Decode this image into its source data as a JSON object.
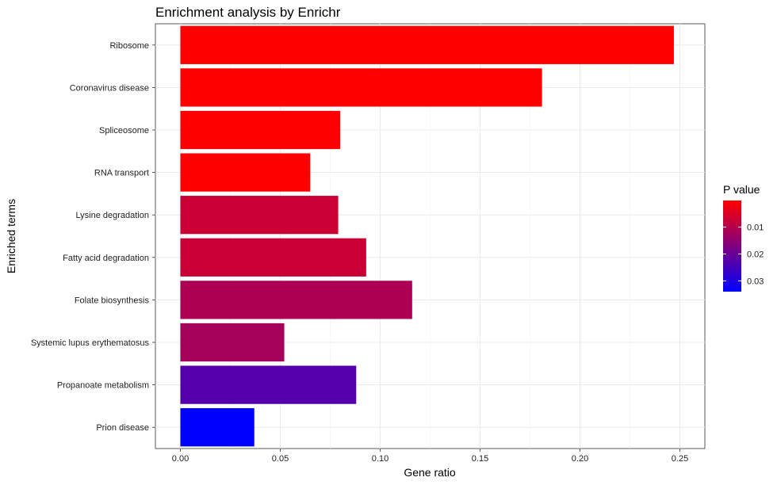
{
  "chart_data": {
    "type": "bar",
    "orientation": "horizontal",
    "title": "Enrichment analysis by Enrichr",
    "xlabel": "Gene ratio",
    "ylabel": "Enriched terms",
    "xlim": [
      -0.0125,
      0.2625
    ],
    "xticks": [
      "0.00",
      "0.05",
      "0.10",
      "0.15",
      "0.20",
      "0.25"
    ],
    "xtick_values": [
      0,
      0.05,
      0.1,
      0.15,
      0.2,
      0.25
    ],
    "grid": true,
    "categories": [
      "Ribosome",
      "Coronavirus disease",
      "Spliceosome",
      "RNA transport",
      "Lysine degradation",
      "Fatty acid degradation",
      "Folate biosynthesis",
      "Systemic lupus erythematosus",
      "Propanoate metabolism",
      "Prion disease"
    ],
    "values": [
      0.247,
      0.181,
      0.08,
      0.065,
      0.079,
      0.093,
      0.116,
      0.052,
      0.088,
      0.037
    ],
    "p_values": [
      0.0001,
      0.0001,
      0.0001,
      0.0001,
      0.0072,
      0.0072,
      0.011,
      0.012,
      0.023,
      0.034
    ],
    "color_scale": {
      "title": "P value",
      "low_color": "#ff0000",
      "high_color": "#0000ff",
      "min": 0.0001,
      "max": 0.034,
      "ticks": [
        "0.01",
        "0.02",
        "0.03"
      ],
      "tick_values": [
        0.01,
        0.02,
        0.03
      ]
    },
    "legend_position": "right"
  }
}
